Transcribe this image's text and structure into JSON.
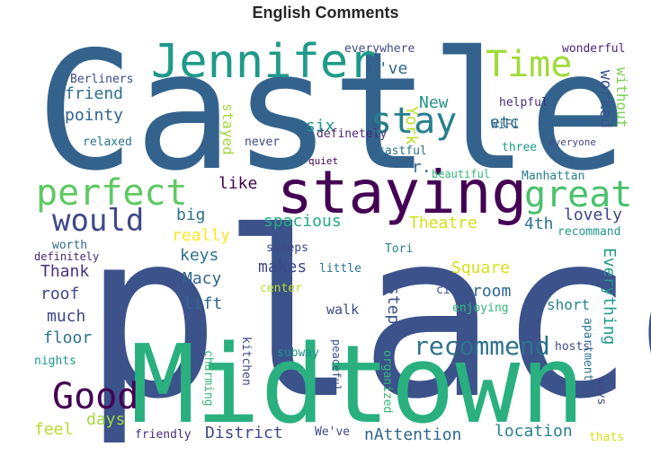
{
  "title": "English Comments",
  "chart_data": {
    "type": "wordcloud",
    "title": "English Comments",
    "words": [
      {
        "text": "place",
        "color": "#3b528b"
      },
      {
        "text": "Castle",
        "color": "#33638d"
      },
      {
        "text": "Midtown",
        "color": "#2ab07f"
      },
      {
        "text": "staying",
        "color": "#440154"
      },
      {
        "text": "Jennifer",
        "color": "#1f9a8a"
      },
      {
        "text": "Time",
        "color": "#a0da39"
      },
      {
        "text": "stay",
        "color": "#277f8e"
      },
      {
        "text": "perfect",
        "color": "#5ec962"
      },
      {
        "text": "great",
        "color": "#4ac16d"
      },
      {
        "text": "would",
        "color": "#3e4989"
      },
      {
        "text": "Good",
        "color": "#440154"
      },
      {
        "text": "recommend",
        "color": "#2c728e"
      },
      {
        "text": "I've",
        "color": "#31688e"
      },
      {
        "text": "New",
        "color": "#21918c"
      },
      {
        "text": "York",
        "color": "#bddf26"
      },
      {
        "text": "friend",
        "color": "#2c728e"
      },
      {
        "text": "pointy",
        "color": "#33638d"
      },
      {
        "text": "Berliners",
        "color": "#3e4989"
      },
      {
        "text": "relaxed",
        "color": "#2c728e"
      },
      {
        "text": "six",
        "color": "#21918c"
      },
      {
        "text": "etc",
        "color": "#2c728e"
      },
      {
        "text": "worked",
        "color": "#3b528b"
      },
      {
        "text": "without",
        "color": "#7ad151"
      },
      {
        "text": "everywhere",
        "color": "#3e4989"
      },
      {
        "text": "wonderful",
        "color": "#482878"
      },
      {
        "text": "helpful",
        "color": "#472d7b"
      },
      {
        "text": "WiFi",
        "color": "#31688e"
      },
      {
        "text": "definetely",
        "color": "#482878"
      },
      {
        "text": "tastful",
        "color": "#2c728e"
      },
      {
        "text": "three",
        "color": "#1f9a8a"
      },
      {
        "text": "everyone",
        "color": "#3e4989"
      },
      {
        "text": "quiet",
        "color": "#440154"
      },
      {
        "text": "r.",
        "color": "#31688e"
      },
      {
        "text": "beautiful",
        "color": "#35b779"
      },
      {
        "text": "Manhattan",
        "color": "#26828e"
      },
      {
        "text": "stayed",
        "color": "#a0da39"
      },
      {
        "text": "never",
        "color": "#3e4989"
      },
      {
        "text": "like",
        "color": "#440154"
      },
      {
        "text": "big",
        "color": "#2c728e"
      },
      {
        "text": "spacious",
        "color": "#25ab82"
      },
      {
        "text": "Theatre",
        "color": "#d2e21b"
      },
      {
        "text": "4th",
        "color": "#2c728e"
      },
      {
        "text": "lovely",
        "color": "#3e4989"
      },
      {
        "text": "recommand",
        "color": "#1f9a8a"
      },
      {
        "text": "really",
        "color": "#fde725"
      },
      {
        "text": "keys",
        "color": "#2c728e"
      },
      {
        "text": "worth",
        "color": "#31688e"
      },
      {
        "text": "definitely",
        "color": "#482878"
      },
      {
        "text": "Thank",
        "color": "#46327e"
      },
      {
        "text": "Macy",
        "color": "#31688e"
      },
      {
        "text": "sleeps",
        "color": "#3e4989"
      },
      {
        "text": "Tori",
        "color": "#26828e"
      },
      {
        "text": "makes",
        "color": "#3e4989"
      },
      {
        "text": "Square",
        "color": "#d2e21b"
      },
      {
        "text": "roof",
        "color": "#3e4989"
      },
      {
        "text": "lift",
        "color": "#31688e"
      },
      {
        "text": "little",
        "color": "#2c728e"
      },
      {
        "text": "center",
        "color": "#b5de2b"
      },
      {
        "text": "room",
        "color": "#31688e"
      },
      {
        "text": "Everything",
        "color": "#1f9a8a"
      },
      {
        "text": "much",
        "color": "#3e4989"
      },
      {
        "text": "city",
        "color": "#3b528b"
      },
      {
        "text": "steps",
        "color": "#3b528b"
      },
      {
        "text": "short",
        "color": "#26828e"
      },
      {
        "text": "floor",
        "color": "#2c728e"
      },
      {
        "text": "walk",
        "color": "#3e4989"
      },
      {
        "text": "enjoying",
        "color": "#35b779"
      },
      {
        "text": "nights",
        "color": "#1f9a8a"
      },
      {
        "text": "charming",
        "color": "#35b779"
      },
      {
        "text": "kitchen",
        "color": "#3e4989"
      },
      {
        "text": "subway",
        "color": "#21918c"
      },
      {
        "text": "peaceful",
        "color": "#3b528b"
      },
      {
        "text": "organized",
        "color": "#35b779"
      },
      {
        "text": "apartment",
        "color": "#2c728e"
      },
      {
        "text": "hosts",
        "color": "#3e4989"
      },
      {
        "text": "ways",
        "color": "#3e4989"
      },
      {
        "text": "feel",
        "color": "#b5de2b"
      },
      {
        "text": "days",
        "color": "#a0da39"
      },
      {
        "text": "friendly",
        "color": "#472d7b"
      },
      {
        "text": "District",
        "color": "#3e4989"
      },
      {
        "text": "We've",
        "color": "#3e4989"
      },
      {
        "text": "nAttention",
        "color": "#31688e"
      },
      {
        "text": "location",
        "color": "#26828e"
      },
      {
        "text": "thats",
        "color": "#d2e21b"
      }
    ]
  }
}
